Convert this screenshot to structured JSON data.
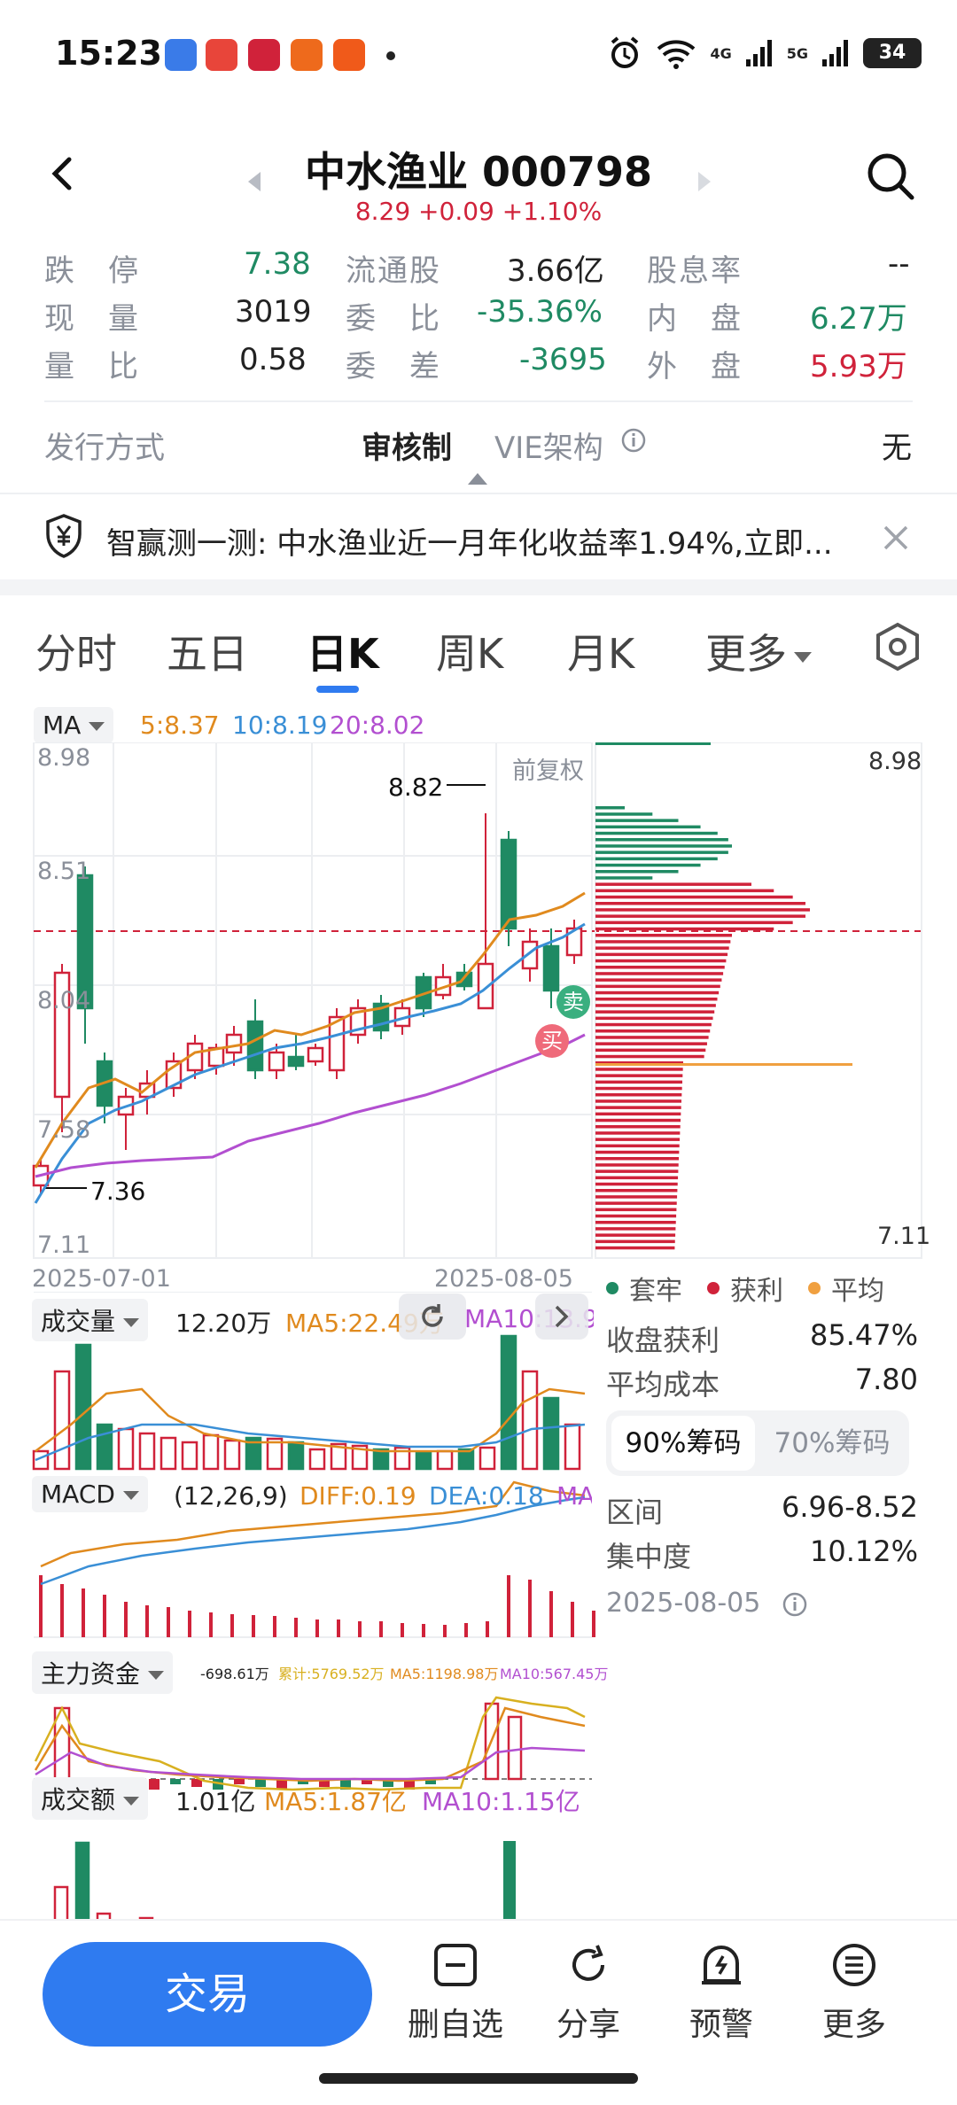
{
  "status_bar": {
    "time": "15:23",
    "network1": "4G",
    "network2": "5G",
    "battery": "34"
  },
  "header": {
    "title": "中水渔业 000798",
    "quote": "8.29 +0.09 +1.10%"
  },
  "quote_grid": {
    "row1": [
      {
        "label": "跌　停",
        "value": "7.38"
      },
      {
        "label": "流通股",
        "value": "3.66亿"
      },
      {
        "label": "股息率",
        "value": "--"
      }
    ],
    "row2": [
      {
        "label": "现　量",
        "value": "3019"
      },
      {
        "label": "委　比",
        "value": "-35.36%"
      },
      {
        "label": "内　盘",
        "value": "6.27万"
      }
    ],
    "row3": [
      {
        "label": "量　比",
        "value": "0.58"
      },
      {
        "label": "委　差",
        "value": "-3695"
      },
      {
        "label": "外　盘",
        "value": "5.93万"
      }
    ]
  },
  "issue": {
    "label": "发行方式",
    "value": "审核制",
    "vie_label": "VIE架构",
    "vie_value": "无"
  },
  "banner": {
    "text": "智赢测一测: 中水渔业近一月年化收益率1.94%,立即..."
  },
  "tabs": [
    "分时",
    "五日",
    "日K",
    "周K",
    "月K",
    "更多"
  ],
  "active_tab": "日K",
  "ma_legend": {
    "selector": "MA",
    "ma5": "5:8.37",
    "ma10": "10:8.19",
    "ma20": "20:8.02"
  },
  "kchart": {
    "fuquan": "前复权",
    "y_labels": [
      "8.98",
      "8.51",
      "8.04",
      "7.58",
      "7.11"
    ],
    "high_mark": "8.82",
    "low_mark": "7.36",
    "date_start": "2025-07-01",
    "date_end": "2025-08-05",
    "sell_tag": "卖",
    "buy_tag": "买"
  },
  "chips": {
    "top": "8.98",
    "bottom": "7.11",
    "legend": [
      "套牢",
      "获利",
      "平均"
    ],
    "profit_label": "收盘获利",
    "profit_value": "85.47%",
    "avg_label": "平均成本",
    "avg_value": "7.80",
    "tab_90": "90%筹码",
    "tab_70": "70%筹码",
    "range_label": "区间",
    "range_value": "6.96-8.52",
    "conc_label": "集中度",
    "conc_value": "10.12%",
    "date": "2025-08-05"
  },
  "volume": {
    "label": "成交量",
    "value": "12.20万",
    "ma5": "MA5:22.49万",
    "ma10": "MA10:13.95"
  },
  "macd": {
    "label": "MACD",
    "params": "(12,26,9)",
    "diff": "DIFF:0.19",
    "dea": "DEA:0.18",
    "ma": "MA"
  },
  "capital": {
    "label": "主力资金",
    "v": "-698.61万",
    "cum": "累计:5769.52万",
    "ma5": "MA5:1198.98万",
    "ma10": "MA10:567.45万"
  },
  "amount": {
    "label": "成交额",
    "value": "1.01亿",
    "ma5": "MA5:1.87亿",
    "ma10": "MA10:1.15亿"
  },
  "bottom_bar": {
    "trade": "交易",
    "items": [
      "删自选",
      "分享",
      "预警",
      "更多"
    ]
  },
  "colors": {
    "up": "#d0223a",
    "down": "#1f8a63",
    "ma5": "#e08a1e",
    "ma10": "#3a8fd6",
    "ma20": "#b24fd0",
    "accent": "#2f7bf0"
  }
}
